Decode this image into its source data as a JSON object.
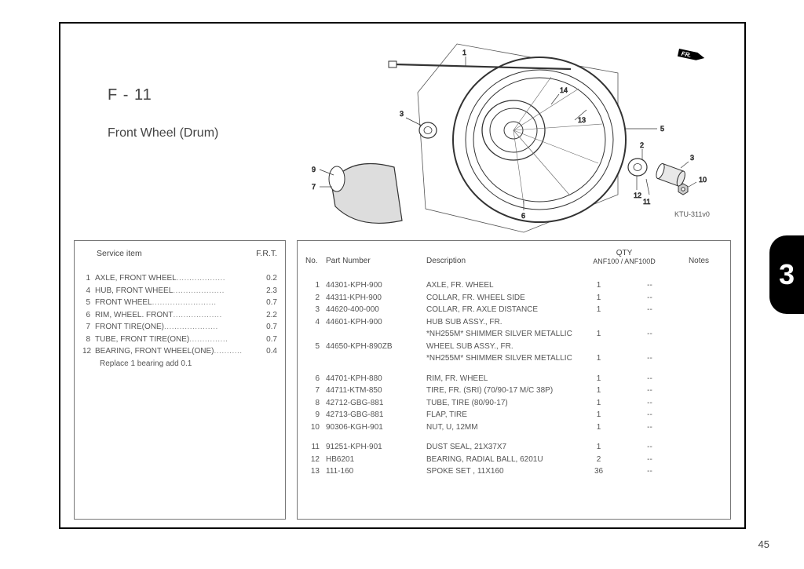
{
  "section_code": "F - 11",
  "section_title": "Front Wheel (Drum)",
  "page_number": "45",
  "tab_number": "3",
  "diagram_label": "KTU-311v0",
  "fr_arrow": "FR.",
  "callouts": [
    "1",
    "2",
    "3",
    "5",
    "6",
    "7",
    "9",
    "10",
    "11",
    "12",
    "13",
    "14"
  ],
  "service_header": {
    "item": "Service item",
    "frt": "F.R.T."
  },
  "service_items": [
    {
      "no": "1",
      "desc": "AXLE, FRONT WHEEL",
      "frt": "0.2"
    },
    {
      "no": "4",
      "desc": "HUB, FRONT WHEEL",
      "frt": "2.3"
    },
    {
      "no": "5",
      "desc": "FRONT WHEEL",
      "frt": "0.7"
    },
    {
      "no": "6",
      "desc": "RIM, WHEEL. FRONT",
      "frt": "2.2"
    },
    {
      "no": "7",
      "desc": "FRONT TIRE(ONE)",
      "frt": "0.7"
    },
    {
      "no": "8",
      "desc": "TUBE, FRONT TIRE(ONE)",
      "frt": "0.7"
    },
    {
      "no": "12",
      "desc": "BEARING, FRONT WHEEL(ONE)",
      "frt": "0.4"
    }
  ],
  "service_note": "Replace 1 bearing add  0.1",
  "parts_header": {
    "no": "No.",
    "pn": "Part Number",
    "desc": "Description",
    "qty_top": "QTY",
    "qty_sub": "ANF100 / ANF100D",
    "notes": "Notes"
  },
  "parts_groups": [
    [
      {
        "no": "1",
        "pn": "44301-KPH-900",
        "desc": "AXLE, FR. WHEEL",
        "q1": "1",
        "q2": "--"
      },
      {
        "no": "2",
        "pn": "44311-KPH-900",
        "desc": "COLLAR, FR. WHEEL SIDE",
        "q1": "1",
        "q2": "--"
      },
      {
        "no": "3",
        "pn": "44620-400-000",
        "desc": "COLLAR, FR. AXLE DISTANCE",
        "q1": "1",
        "q2": "--"
      },
      {
        "no": "4",
        "pn": "44601-KPH-900",
        "desc": "HUB SUB ASSY., FR.",
        "q1": "",
        "q2": ""
      },
      {
        "no": "",
        "pn": "",
        "desc": "*NH255M*    SHIMMER SILVER METALLIC",
        "q1": "1",
        "q2": "--"
      },
      {
        "no": "5",
        "pn": "44650-KPH-890ZB",
        "desc": "WHEEL SUB ASSY., FR.",
        "q1": "",
        "q2": ""
      },
      {
        "no": "",
        "pn": "",
        "desc": "*NH255M*    SHIMMER SILVER METALLIC",
        "q1": "1",
        "q2": "--"
      }
    ],
    [
      {
        "no": "6",
        "pn": "44701-KPH-880",
        "desc": "RIM, FR. WHEEL",
        "q1": "1",
        "q2": "--"
      },
      {
        "no": "7",
        "pn": "44711-KTM-850",
        "desc": "TIRE, FR. (SRI)  (70/90-17 M/C 38P)",
        "q1": "1",
        "q2": "--"
      },
      {
        "no": "8",
        "pn": "42712-GBG-881",
        "desc": "TUBE, TIRE (80/90-17)",
        "q1": "1",
        "q2": "--"
      },
      {
        "no": "9",
        "pn": "42713-GBG-881",
        "desc": "FLAP, TIRE",
        "q1": "1",
        "q2": "--"
      },
      {
        "no": "10",
        "pn": "90306-KGH-901",
        "desc": "NUT, U, 12MM",
        "q1": "1",
        "q2": "--"
      }
    ],
    [
      {
        "no": "11",
        "pn": "91251-KPH-901",
        "desc": "DUST SEAL, 21X37X7",
        "q1": "1",
        "q2": "--"
      },
      {
        "no": "12",
        "pn": "HB6201",
        "desc": "BEARING, RADIAL BALL, 6201U",
        "q1": "2",
        "q2": "--"
      },
      {
        "no": "13",
        "pn": "111-160",
        "desc": "SPOKE SET , 11X160",
        "q1": "36",
        "q2": "--"
      }
    ]
  ]
}
